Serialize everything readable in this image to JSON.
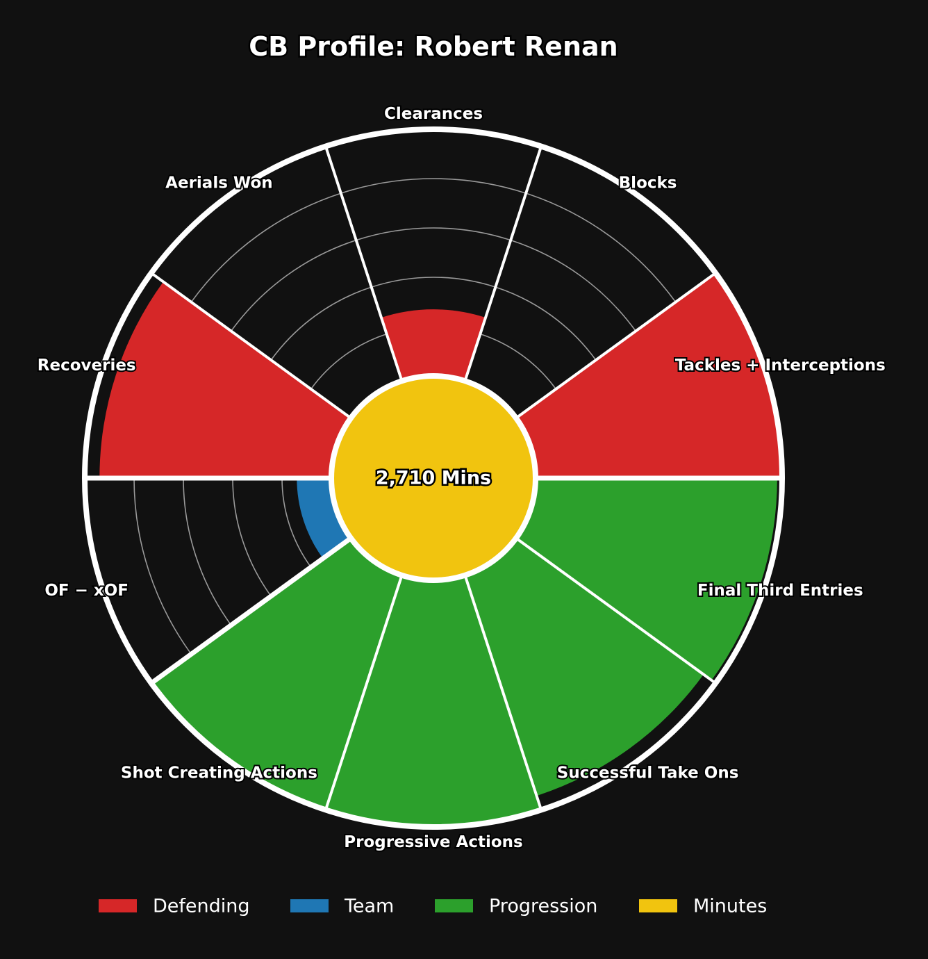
{
  "chart_data": {
    "type": "polar-bar",
    "title": "CB Profile: Robert Renan",
    "center_label": "2,710 Mins",
    "rlim": [
      0,
      100
    ],
    "rings": [
      20,
      40,
      60,
      80,
      100
    ],
    "grid": true,
    "legend_position": "bottom",
    "categories": [
      {
        "label": "Clearances",
        "group": "Defending",
        "value": 27
      },
      {
        "label": "Blocks",
        "group": "Defending",
        "value": 0
      },
      {
        "label": "Tackles + Interceptions",
        "group": "Defending",
        "value": 100
      },
      {
        "label": "Final Third Entries",
        "group": "Progression",
        "value": 98
      },
      {
        "label": "Successful Take Ons",
        "group": "Progression",
        "value": 94
      },
      {
        "label": "Progressive Actions",
        "group": "Progression",
        "value": 100
      },
      {
        "label": "Shot Creating Actions",
        "group": "Progression",
        "value": 100
      },
      {
        "label": "OF − xOF",
        "group": "Team",
        "value": 14
      },
      {
        "label": "Recoveries",
        "group": "Defending",
        "value": 94
      },
      {
        "label": "Aerials Won",
        "group": "Defending",
        "value": 0
      }
    ],
    "legend": [
      {
        "name": "Defending",
        "color": "#d62728"
      },
      {
        "name": "Team",
        "color": "#1f77b4"
      },
      {
        "name": "Progression",
        "color": "#2ca02c"
      },
      {
        "name": "Minutes",
        "color": "#f1c40f"
      }
    ]
  }
}
